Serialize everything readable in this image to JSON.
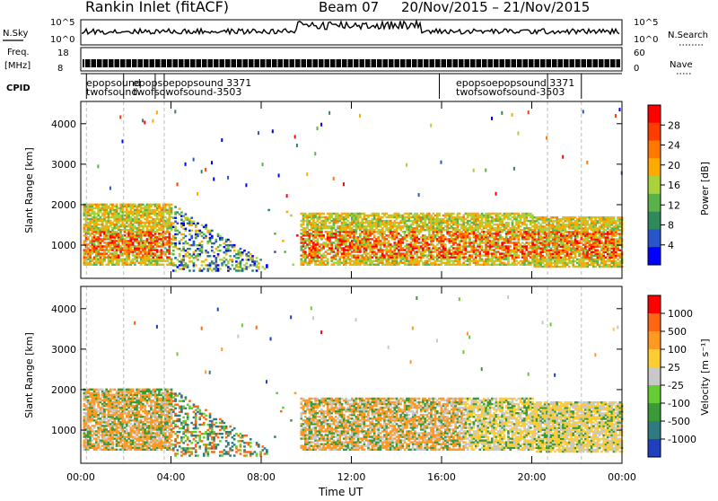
{
  "title": "Rankin Inlet (fitACF)",
  "beam_label": "Beam 07",
  "date_range": "20/Nov/2015 – 21/Nov/2015",
  "side_panels": {
    "nsky_label": "N.Sky",
    "nsky_ticks": [
      "10^5",
      "10^0"
    ],
    "nsearch_label": "N.Search",
    "nsearch_ticks": [
      "10^5",
      "10^0"
    ],
    "freq_label_top": "Freq.",
    "freq_label_bottom": "[MHz]",
    "freq_ticks": [
      "18",
      "8"
    ],
    "nave_label": "Nave",
    "nave_ticks": [
      "60",
      "0"
    ],
    "cpid_label": "CPID",
    "cpid_text_upper": "epopsound",
    "cpid_text_lower": "twofsound",
    "cpid_3371": "3371",
    "cpid_3503": "-3503",
    "cpid_dup_a": "epopsoepopsound 3371",
    "cpid_dup_b": "twofsowofsound-3503"
  },
  "chart_data": [
    {
      "type": "heatmap",
      "name": "Power",
      "xlabel": "",
      "ylabel": "Slant Range [km]",
      "x_ticks": [
        "00:00",
        "04:00",
        "08:00",
        "12:00",
        "16:00",
        "20:00",
        "00:00"
      ],
      "x_hours": [
        0,
        4,
        8,
        12,
        16,
        20,
        24
      ],
      "y_ticks": [
        1000,
        2000,
        3000,
        4000
      ],
      "ylim": [
        180,
        4550
      ],
      "xlim": [
        0,
        24
      ],
      "colorbar": {
        "label": "Power [dB]",
        "ticks": [
          4,
          8,
          12,
          16,
          20,
          24,
          28
        ],
        "range": [
          0,
          32
        ],
        "colors": [
          "#0000ff",
          "#2855c8",
          "#2e8a5a",
          "#5ab34a",
          "#aad23c",
          "#ffaa00",
          "#ff7800",
          "#ff3c00",
          "#ff0000"
        ]
      }
    },
    {
      "type": "heatmap",
      "name": "Velocity",
      "xlabel": "Time UT",
      "ylabel": "Slant Range [km]",
      "x_ticks": [
        "00:00",
        "04:00",
        "08:00",
        "12:00",
        "16:00",
        "20:00",
        "00:00"
      ],
      "x_hours": [
        0,
        4,
        8,
        12,
        16,
        20,
        24
      ],
      "y_ticks": [
        1000,
        2000,
        3000,
        4000
      ],
      "ylim": [
        180,
        4550
      ],
      "xlim": [
        0,
        24
      ],
      "colorbar": {
        "label": "Velocity [m s⁻¹]",
        "ticks": [
          "1000",
          "500",
          "100",
          "25",
          "-25",
          "-100",
          "-500",
          "-1000"
        ],
        "colors": [
          "#2040c0",
          "#2e7a80",
          "#3a9a3a",
          "#66cc33",
          "#c8c8c8",
          "#ffcc33",
          "#ff9922",
          "#ff6611",
          "#ff0000"
        ]
      }
    }
  ]
}
